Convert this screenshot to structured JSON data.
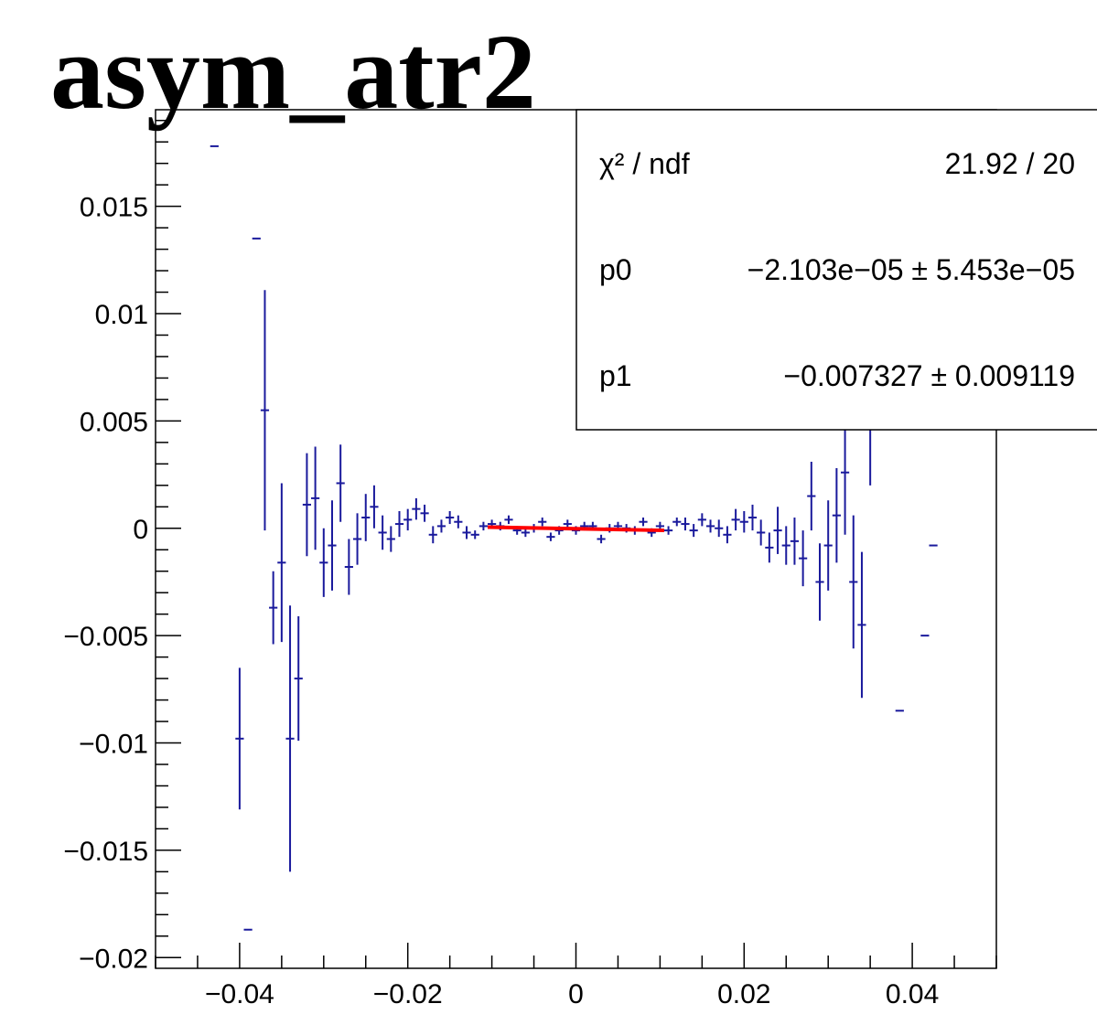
{
  "chart_data": {
    "type": "scatter",
    "title": "asym_atr2",
    "xlabel": "",
    "ylabel": "",
    "xlim": [
      -0.05,
      0.05
    ],
    "ylim": [
      -0.0205,
      0.0195
    ],
    "x_ticks": [
      -0.04,
      -0.02,
      0,
      0.02,
      0.04
    ],
    "x_tick_labels": [
      "−0.04",
      "−0.02",
      "0",
      "0.02",
      "0.04"
    ],
    "y_ticks": [
      -0.02,
      -0.015,
      -0.01,
      -0.005,
      0,
      0.005,
      0.01,
      0.015
    ],
    "y_tick_labels": [
      "−0.02",
      "−0.015",
      "−0.01",
      "−0.005",
      "0",
      "0.005",
      "0.01",
      "0.015"
    ],
    "grid": false,
    "series": [
      {
        "color": "#1a1a9c",
        "x_err": 0.0005,
        "points": [
          [
            -0.043,
            0.0178,
            0
          ],
          [
            -0.038,
            0.0135,
            0
          ],
          [
            -0.04,
            -0.0098,
            0.0033
          ],
          [
            -0.039,
            -0.0187,
            0
          ],
          [
            -0.037,
            0.0055,
            0.0056
          ],
          [
            -0.036,
            -0.0037,
            0.0017
          ],
          [
            -0.035,
            -0.0016,
            0.0037
          ],
          [
            -0.034,
            -0.0098,
            0.0062
          ],
          [
            -0.033,
            -0.007,
            0.0029
          ],
          [
            -0.032,
            0.0011,
            0.0024
          ],
          [
            -0.031,
            0.0014,
            0.0024
          ],
          [
            -0.03,
            -0.0016,
            0.0016
          ],
          [
            -0.029,
            -0.0008,
            0.0021
          ],
          [
            -0.028,
            0.0021,
            0.0018
          ],
          [
            -0.027,
            -0.0018,
            0.0013
          ],
          [
            -0.026,
            -0.0005,
            0.0012
          ],
          [
            -0.025,
            0.0005,
            0.0011
          ],
          [
            -0.024,
            0.001,
            0.001
          ],
          [
            -0.023,
            -0.0002,
            0.0008
          ],
          [
            -0.022,
            -0.0005,
            0.0006
          ],
          [
            -0.021,
            0.0002,
            0.0006
          ],
          [
            -0.02,
            0.0004,
            0.0005
          ],
          [
            -0.019,
            0.0009,
            0.0005
          ],
          [
            -0.018,
            0.0007,
            0.0004
          ],
          [
            -0.017,
            -0.0003,
            0.0004
          ],
          [
            -0.016,
            0.0001,
            0.0003
          ],
          [
            -0.015,
            0.0005,
            0.0003
          ],
          [
            -0.014,
            0.0003,
            0.0003
          ],
          [
            -0.013,
            -0.0002,
            0.0003
          ],
          [
            -0.012,
            -0.0003,
            0.0002
          ],
          [
            -0.011,
            0.0001,
            0.0002
          ],
          [
            -0.01,
            0.0002,
            0.0002
          ],
          [
            -0.009,
            0.0001,
            0.0002
          ],
          [
            -0.008,
            0.0004,
            0.0002
          ],
          [
            -0.007,
            -0.0001,
            0.0002
          ],
          [
            -0.006,
            -0.0002,
            0.0002
          ],
          [
            -0.005,
            0.0,
            0.0002
          ],
          [
            -0.004,
            0.0003,
            0.0002
          ],
          [
            -0.003,
            -0.0004,
            0.0002
          ],
          [
            -0.002,
            -0.0001,
            0.0002
          ],
          [
            -0.001,
            0.0002,
            0.0002
          ],
          [
            0.0,
            -0.0001,
            0.0002
          ],
          [
            0.001,
            0.0001,
            0.0002
          ],
          [
            0.002,
            0.0001,
            0.0002
          ],
          [
            0.003,
            -0.0005,
            0.0002
          ],
          [
            0.004,
            0.0,
            0.0002
          ],
          [
            0.005,
            0.0001,
            0.0002
          ],
          [
            0.006,
            0.0,
            0.0002
          ],
          [
            0.007,
            -0.0001,
            0.0002
          ],
          [
            0.008,
            0.0003,
            0.0002
          ],
          [
            0.009,
            -0.0002,
            0.0002
          ],
          [
            0.01,
            0.0001,
            0.0002
          ],
          [
            0.011,
            -0.0001,
            0.0002
          ],
          [
            0.012,
            0.0003,
            0.0002
          ],
          [
            0.013,
            0.0002,
            0.0003
          ],
          [
            0.014,
            -0.0001,
            0.0003
          ],
          [
            0.015,
            0.0004,
            0.0003
          ],
          [
            0.016,
            0.0001,
            0.0003
          ],
          [
            0.017,
            0.0,
            0.0004
          ],
          [
            0.018,
            -0.0003,
            0.0004
          ],
          [
            0.019,
            0.0004,
            0.0005
          ],
          [
            0.02,
            0.0003,
            0.0005
          ],
          [
            0.021,
            0.0005,
            0.0006
          ],
          [
            0.022,
            -0.0002,
            0.0006
          ],
          [
            0.023,
            -0.0009,
            0.0007
          ],
          [
            0.024,
            -0.0001,
            0.0011
          ],
          [
            0.025,
            -0.0008,
            0.0009
          ],
          [
            0.026,
            -0.0006,
            0.0011
          ],
          [
            0.027,
            -0.0014,
            0.0013
          ],
          [
            0.028,
            0.0015,
            0.0016
          ],
          [
            0.029,
            -0.0025,
            0.0018
          ],
          [
            0.03,
            -0.0008,
            0.0021
          ],
          [
            0.031,
            0.0006,
            0.0022
          ],
          [
            0.032,
            0.0026,
            0.0029
          ],
          [
            0.033,
            -0.0025,
            0.0031
          ],
          [
            0.034,
            -0.0045,
            0.0034
          ],
          [
            0.035,
            0.005,
            0.003
          ],
          [
            0.0385,
            -0.0085,
            0
          ],
          [
            0.0415,
            -0.005,
            0
          ],
          [
            0.0425,
            -0.0008,
            0
          ]
        ]
      }
    ],
    "fit": {
      "color": "#ff0000",
      "x_range": [
        -0.0105,
        0.0105
      ],
      "p0": -2.103e-05,
      "p1": -0.007327
    },
    "stats_box": {
      "placement": "top-right",
      "rows": [
        {
          "label": "χ² / ndf",
          "value": "21.92 / 20"
        },
        {
          "label": "p0",
          "value": "−2.103e−05 ± 5.453e−05"
        },
        {
          "label": "p1",
          "value": "−0.007327 ± 0.009119"
        }
      ]
    }
  }
}
